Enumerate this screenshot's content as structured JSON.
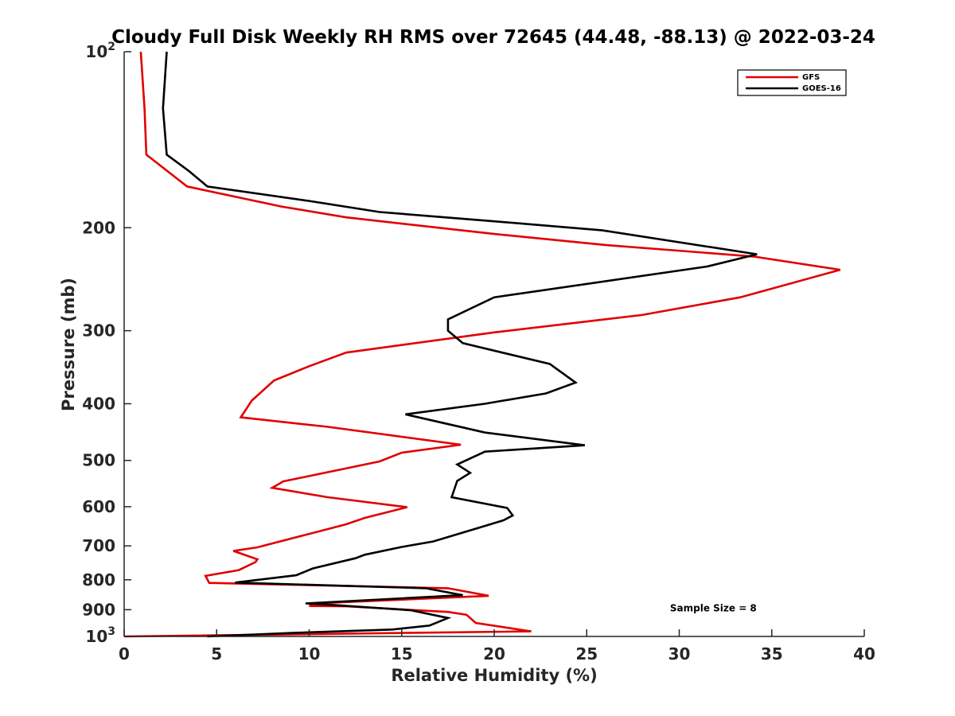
{
  "chart_data": {
    "type": "line",
    "title": "Cloudy Full Disk Weekly RH RMS over 72645 (44.48, -88.13) @ 2022-03-24",
    "xlabel": "Relative Humidity (%)",
    "ylabel": "Pressure (mb)",
    "xlim": [
      0,
      40
    ],
    "ylim": [
      100,
      1000
    ],
    "yscale": "log",
    "y_reversed": true,
    "grid": false,
    "legend_position": "top-right",
    "x_ticks": [
      {
        "value": 0,
        "label": "0"
      },
      {
        "value": 5,
        "label": "5"
      },
      {
        "value": 10,
        "label": "10"
      },
      {
        "value": 15,
        "label": "15"
      },
      {
        "value": 20,
        "label": "20"
      },
      {
        "value": 25,
        "label": "25"
      },
      {
        "value": 30,
        "label": "30"
      },
      {
        "value": 35,
        "label": "35"
      },
      {
        "value": 40,
        "label": "40"
      }
    ],
    "y_ticks": [
      {
        "value": 100,
        "label": "10",
        "sup": "2"
      },
      {
        "value": 200,
        "label": "200",
        "sup": ""
      },
      {
        "value": 300,
        "label": "300",
        "sup": ""
      },
      {
        "value": 400,
        "label": "400",
        "sup": ""
      },
      {
        "value": 500,
        "label": "500",
        "sup": ""
      },
      {
        "value": 600,
        "label": "600",
        "sup": ""
      },
      {
        "value": 700,
        "label": "700",
        "sup": ""
      },
      {
        "value": 800,
        "label": "800",
        "sup": ""
      },
      {
        "value": 900,
        "label": "900",
        "sup": ""
      },
      {
        "value": 1000,
        "label": "10",
        "sup": "3"
      }
    ],
    "series": [
      {
        "name": "GFS",
        "color": "#e00000",
        "points": [
          [
            0.9,
            100
          ],
          [
            1.1,
            125
          ],
          [
            1.2,
            150
          ],
          [
            3.4,
            170
          ],
          [
            8.5,
            184
          ],
          [
            12.0,
            192
          ],
          [
            20.0,
            205
          ],
          [
            26.0,
            214
          ],
          [
            34.0,
            224
          ],
          [
            38.7,
            236
          ],
          [
            33.3,
            263
          ],
          [
            28.0,
            282
          ],
          [
            20.0,
            302
          ],
          [
            12.0,
            327
          ],
          [
            10.0,
            345
          ],
          [
            8.1,
            365
          ],
          [
            6.9,
            395
          ],
          [
            6.3,
            422
          ],
          [
            11.0,
            438
          ],
          [
            18.2,
            470
          ],
          [
            15.0,
            485
          ],
          [
            13.8,
            502
          ],
          [
            8.6,
            543
          ],
          [
            8.0,
            557
          ],
          [
            11.0,
            578
          ],
          [
            15.3,
            601
          ],
          [
            13.0,
            627
          ],
          [
            12.0,
            643
          ],
          [
            7.2,
            704
          ],
          [
            5.9,
            714
          ],
          [
            7.2,
            738
          ],
          [
            7.1,
            746
          ],
          [
            6.2,
            770
          ],
          [
            4.4,
            788
          ],
          [
            4.6,
            810
          ],
          [
            17.5,
            827
          ],
          [
            19.7,
            852
          ],
          [
            10.7,
            877
          ],
          [
            10.0,
            887
          ],
          [
            12.0,
            888
          ],
          [
            17.5,
            908
          ],
          [
            18.5,
            918
          ],
          [
            19.0,
            948
          ],
          [
            22.0,
            980
          ],
          [
            0.0,
            1000
          ]
        ]
      },
      {
        "name": "GOES-16",
        "color": "#000000",
        "points": [
          [
            2.3,
            100
          ],
          [
            2.1,
            125
          ],
          [
            2.3,
            150
          ],
          [
            3.5,
            160
          ],
          [
            4.5,
            170
          ],
          [
            10.0,
            180
          ],
          [
            13.8,
            188
          ],
          [
            20.0,
            195
          ],
          [
            25.8,
            202
          ],
          [
            34.2,
            222
          ],
          [
            31.5,
            233
          ],
          [
            20.0,
            263
          ],
          [
            17.5,
            287
          ],
          [
            17.5,
            300
          ],
          [
            18.3,
            315
          ],
          [
            23.0,
            342
          ],
          [
            24.4,
            368
          ],
          [
            22.8,
            384
          ],
          [
            19.5,
            400
          ],
          [
            15.2,
            417
          ],
          [
            19.5,
            448
          ],
          [
            24.9,
            471
          ],
          [
            19.5,
            483
          ],
          [
            18.0,
            508
          ],
          [
            18.7,
            525
          ],
          [
            18.0,
            542
          ],
          [
            17.7,
            578
          ],
          [
            20.7,
            603
          ],
          [
            21.0,
            621
          ],
          [
            20.5,
            633
          ],
          [
            19.3,
            650
          ],
          [
            16.7,
            688
          ],
          [
            15.0,
            703
          ],
          [
            13.0,
            725
          ],
          [
            12.5,
            735
          ],
          [
            10.2,
            765
          ],
          [
            9.3,
            786
          ],
          [
            6.0,
            809
          ],
          [
            16.3,
            827
          ],
          [
            18.3,
            850
          ],
          [
            9.8,
            878
          ],
          [
            10.5,
            880
          ],
          [
            15.5,
            902
          ],
          [
            17.5,
            930
          ],
          [
            16.5,
            958
          ],
          [
            14.5,
            973
          ],
          [
            9.5,
            985
          ],
          [
            4.5,
            1000
          ]
        ]
      }
    ],
    "annotations": [
      {
        "text": "Sample Size = 8",
        "x": 29.5,
        "y": 900
      }
    ]
  }
}
